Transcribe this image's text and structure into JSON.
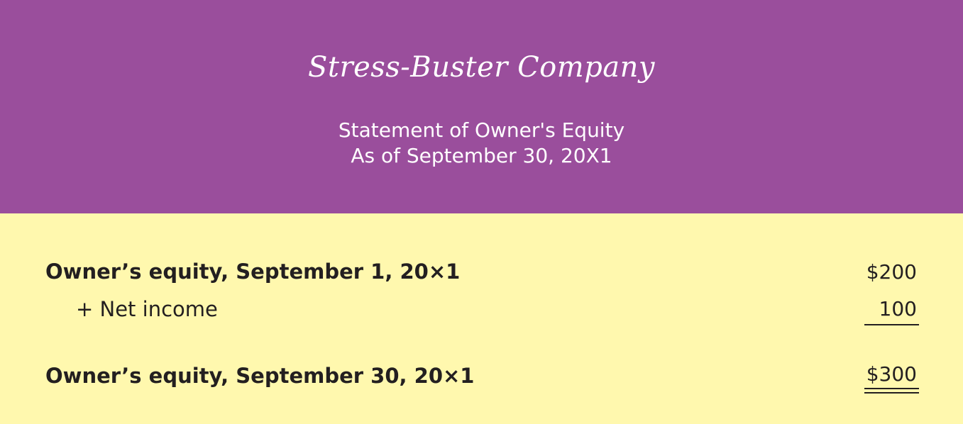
{
  "header": {
    "company_name": "Stress-Buster Company",
    "statement_title": "Statement of Owner's Equity",
    "statement_date": "As of September 30, 20X1",
    "background_color": "#9a4e9c"
  },
  "statement": {
    "background_color": "#fff8ae",
    "rows": [
      {
        "label": "Owner’s equity, September 1, 20×1",
        "amount": "$200"
      },
      {
        "label": "+ Net income",
        "amount": "100"
      },
      {
        "label": "Owner’s equity, September 30, 20×1",
        "amount": "$300"
      }
    ]
  }
}
